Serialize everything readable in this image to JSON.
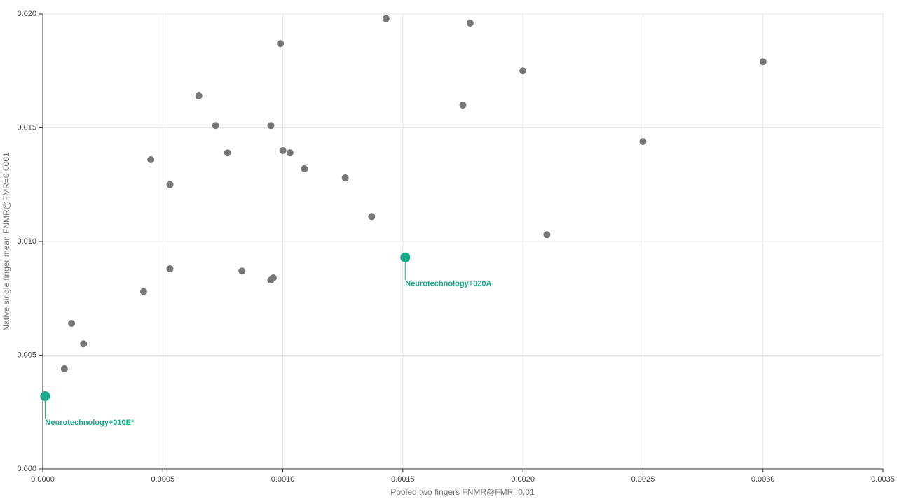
{
  "chart_data": {
    "type": "scatter",
    "x_label": "Pooled two fingers FNMR@FMR=0.01",
    "y_label": "Native single finger mean FNMR@FMR=0.0001",
    "xlim": [
      0,
      0.0035
    ],
    "ylim": [
      0,
      0.02
    ],
    "xticks": [
      {
        "value": 0,
        "label": "0.0000"
      },
      {
        "value": 0.0005,
        "label": "0.0005"
      },
      {
        "value": 0.001,
        "label": "0.0010"
      },
      {
        "value": 0.0015,
        "label": "0.0015"
      },
      {
        "value": 0.002,
        "label": "0.0020"
      },
      {
        "value": 0.0025,
        "label": "0.0025"
      },
      {
        "value": 0.003,
        "label": "0.0030"
      },
      {
        "value": 0.0035,
        "label": "0.0035"
      }
    ],
    "yticks": [
      {
        "value": 0,
        "label": "0.000"
      },
      {
        "value": 0.005,
        "label": "0.005"
      },
      {
        "value": 0.01,
        "label": "0.010"
      },
      {
        "value": 0.015,
        "label": "0.015"
      },
      {
        "value": 0.02,
        "label": "0.020"
      }
    ],
    "grid": true,
    "series": [
      {
        "color": "#777777",
        "x": [
          0.00143,
          0.00178,
          0.00099,
          0.003,
          0.002,
          0.00065,
          0.00175,
          0.00072,
          0.00095,
          0.0025,
          0.00077,
          0.001,
          0.00103,
          0.00045,
          0.00109,
          0.00053,
          0.00126,
          0.00137,
          0.0021,
          0.00053,
          0.00083,
          0.00095,
          0.00096,
          0.00042,
          0.00012,
          0.00017,
          9e-05
        ],
        "values": [
          0.0198,
          0.0196,
          0.0187,
          0.0179,
          0.0175,
          0.0164,
          0.016,
          0.0151,
          0.0151,
          0.0144,
          0.0139,
          0.014,
          0.0139,
          0.0136,
          0.0132,
          0.0125,
          0.0128,
          0.0111,
          0.0103,
          0.0088,
          0.0087,
          0.0083,
          0.0084,
          0.0078,
          0.0064,
          0.0055,
          0.0044
        ]
      },
      {
        "color": "#1aaa8a",
        "x": [
          0.00151,
          1e-05
        ],
        "values": [
          0.0093,
          0.0032
        ],
        "labels": [
          "Neurotechnology+020A",
          "Neurotechnology+010E*"
        ]
      }
    ]
  }
}
